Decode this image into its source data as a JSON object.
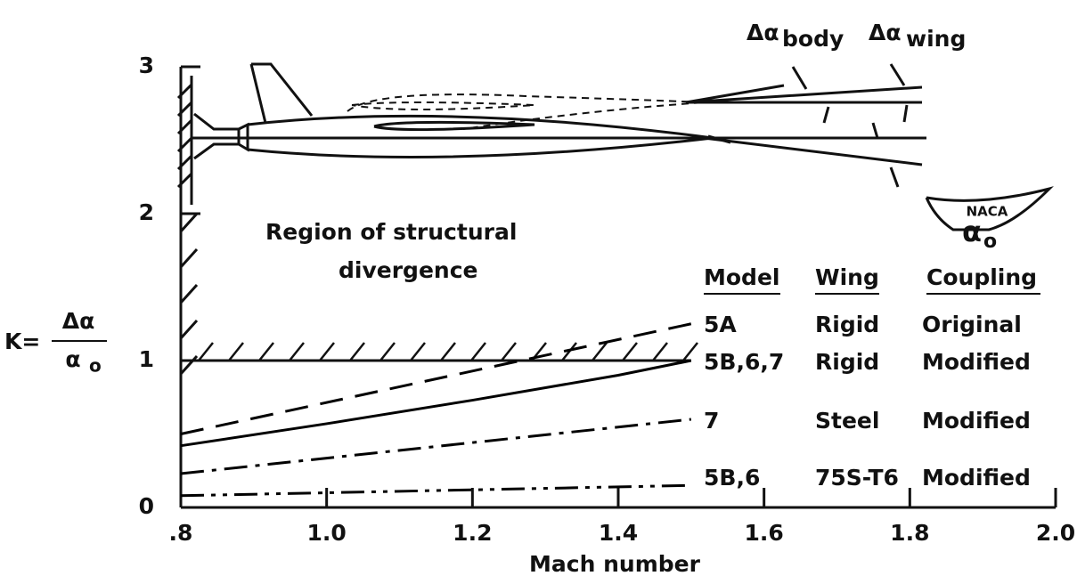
{
  "chart_data": {
    "type": "line",
    "y_label_prefix": "K=",
    "y_label_numerator": "Δα",
    "y_label_denominator": "α",
    "y_label_denominator_sub": "o",
    "x_label": "Mach number",
    "annotations": {
      "region_line1": "Region of structural",
      "region_line2": "divergence",
      "delta_alpha": "Δα",
      "body": "body",
      "wing": "wing",
      "alpha": "α",
      "alpha_sub": "o",
      "logo": "NACA"
    },
    "table_header": [
      "Model",
      "Wing",
      "Coupling"
    ],
    "xlim": [
      0.8,
      2.0
    ],
    "ylim": [
      0,
      3
    ],
    "xticks": [
      {
        "value": 0.8,
        "label": ".8"
      },
      {
        "value": 1.0,
        "label": "1.0"
      },
      1.2,
      1.4,
      1.6,
      1.8,
      {
        "value": 2.0,
        "label": "2.0"
      }
    ],
    "yticks": [
      0,
      1,
      2,
      3
    ],
    "boundary": {
      "x": [
        0.8,
        1.5
      ],
      "values": [
        1,
        1
      ]
    },
    "series": [
      {
        "name": "5A",
        "wing": "Rigid",
        "coupling": "Original",
        "dash": "dashed",
        "color": "#000000",
        "x": [
          0.8,
          1.5
        ],
        "values": [
          0.5,
          1.25
        ]
      },
      {
        "name": "5B,6,7",
        "wing": "Rigid",
        "coupling": "Modified",
        "dash": "solid",
        "color": "#000000",
        "x": [
          0.8,
          1.0,
          1.2,
          1.4,
          1.5
        ],
        "values": [
          0.42,
          0.57,
          0.73,
          0.9,
          1.0
        ]
      },
      {
        "name": "7",
        "wing": "Steel",
        "coupling": "Modified",
        "dash": "dashdot",
        "color": "#000000",
        "x": [
          0.8,
          1.5
        ],
        "values": [
          0.23,
          0.6
        ]
      },
      {
        "name": "5B,6",
        "wing": "75S-T6",
        "coupling": "Modified",
        "dash": "dashdotdot",
        "color": "#000000",
        "x": [
          0.8,
          1.5
        ],
        "values": [
          0.08,
          0.15
        ]
      }
    ]
  }
}
